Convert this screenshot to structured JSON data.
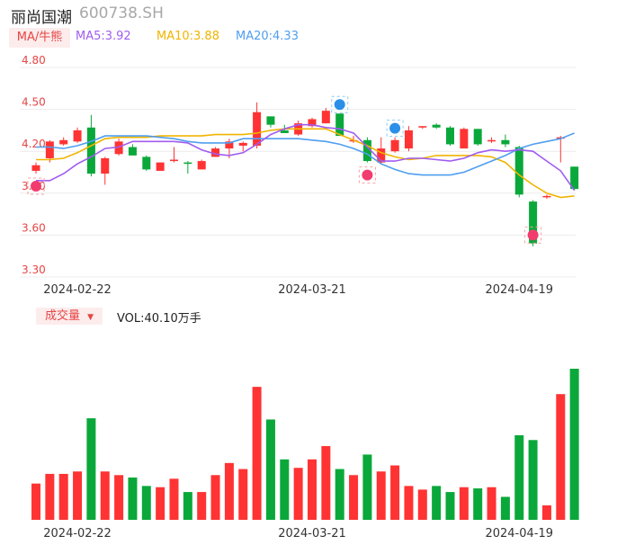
{
  "header": {
    "stock_name": "丽尚国潮",
    "stock_code": "600738.SH"
  },
  "ma_panel": {
    "toggle_label": "MA/牛熊",
    "ma5": {
      "label": "MA5:3.92",
      "color": "#a05cf0"
    },
    "ma10": {
      "label": "MA10:3.88",
      "color": "#f0b400"
    },
    "ma20": {
      "label": "MA20:4.33",
      "color": "#4f9ef0"
    }
  },
  "volume_panel": {
    "toggle_label": "成交量",
    "value_label": "VOL:40.10万手"
  },
  "colors": {
    "up": "#ff3333",
    "down": "#0aa83a",
    "grid": "#ececec",
    "axis_text": "#e64545"
  },
  "chart_data": {
    "type": "candlestick",
    "price_axis": {
      "ylim": [
        3.3,
        4.8
      ],
      "ticks": [
        "4.80",
        "4.50",
        "4.20",
        "3.90",
        "3.60",
        "3.30"
      ]
    },
    "x_tick_labels": [
      {
        "index": 3,
        "label": "2024-02-22"
      },
      {
        "index": 20,
        "label": "2024-03-21"
      },
      {
        "index": 35,
        "label": "2024-04-19"
      }
    ],
    "candles": [
      {
        "o": 4.06,
        "h": 4.12,
        "l": 4.04,
        "c": 4.1,
        "v": 30
      },
      {
        "o": 4.15,
        "h": 4.28,
        "l": 4.12,
        "c": 4.27,
        "v": 38
      },
      {
        "o": 4.25,
        "h": 4.3,
        "l": 4.24,
        "c": 4.28,
        "v": 38
      },
      {
        "o": 4.27,
        "h": 4.37,
        "l": 4.26,
        "c": 4.35,
        "v": 40
      },
      {
        "o": 4.37,
        "h": 4.46,
        "l": 4.02,
        "c": 4.04,
        "v": 84
      },
      {
        "o": 4.04,
        "h": 4.16,
        "l": 3.96,
        "c": 4.15,
        "v": 40
      },
      {
        "o": 4.18,
        "h": 4.29,
        "l": 4.17,
        "c": 4.27,
        "v": 37
      },
      {
        "o": 4.23,
        "h": 4.25,
        "l": 4.17,
        "c": 4.17,
        "v": 35
      },
      {
        "o": 4.16,
        "h": 4.17,
        "l": 4.06,
        "c": 4.07,
        "v": 28
      },
      {
        "o": 4.06,
        "h": 4.12,
        "l": 4.06,
        "c": 4.12,
        "v": 27
      },
      {
        "o": 4.13,
        "h": 4.23,
        "l": 4.12,
        "c": 4.14,
        "v": 34
      },
      {
        "o": 4.12,
        "h": 4.13,
        "l": 4.04,
        "c": 4.11,
        "v": 23
      },
      {
        "o": 4.07,
        "h": 4.14,
        "l": 4.07,
        "c": 4.13,
        "v": 23
      },
      {
        "o": 4.16,
        "h": 4.23,
        "l": 4.16,
        "c": 4.22,
        "v": 37
      },
      {
        "o": 4.22,
        "h": 4.29,
        "l": 4.15,
        "c": 4.27,
        "v": 47
      },
      {
        "o": 4.24,
        "h": 4.27,
        "l": 4.2,
        "c": 4.26,
        "v": 42
      },
      {
        "o": 4.24,
        "h": 4.55,
        "l": 4.22,
        "c": 4.48,
        "v": 110
      },
      {
        "o": 4.45,
        "h": 4.45,
        "l": 4.37,
        "c": 4.39,
        "v": 83
      },
      {
        "o": 4.35,
        "h": 4.39,
        "l": 4.33,
        "c": 4.33,
        "v": 50
      },
      {
        "o": 4.32,
        "h": 4.42,
        "l": 4.31,
        "c": 4.4,
        "v": 43
      },
      {
        "o": 4.38,
        "h": 4.44,
        "l": 4.37,
        "c": 4.43,
        "v": 50
      },
      {
        "o": 4.4,
        "h": 4.51,
        "l": 4.4,
        "c": 4.49,
        "v": 61
      },
      {
        "o": 4.47,
        "h": 4.47,
        "l": 4.32,
        "c": 4.31,
        "v": 42
      },
      {
        "o": 4.28,
        "h": 4.31,
        "l": 4.26,
        "c": 4.28,
        "v": 37
      },
      {
        "o": 4.28,
        "h": 4.3,
        "l": 4.12,
        "c": 4.13,
        "v": 54
      },
      {
        "o": 4.12,
        "h": 4.3,
        "l": 4.11,
        "c": 4.22,
        "v": 40
      },
      {
        "o": 4.2,
        "h": 4.3,
        "l": 4.19,
        "c": 4.28,
        "v": 45
      },
      {
        "o": 4.22,
        "h": 4.38,
        "l": 4.2,
        "c": 4.35,
        "v": 28
      },
      {
        "o": 4.37,
        "h": 4.38,
        "l": 4.36,
        "c": 4.38,
        "v": 25
      },
      {
        "o": 4.39,
        "h": 4.4,
        "l": 4.36,
        "c": 4.37,
        "v": 28
      },
      {
        "o": 4.37,
        "h": 4.38,
        "l": 4.24,
        "c": 4.25,
        "v": 23
      },
      {
        "o": 4.22,
        "h": 4.37,
        "l": 4.22,
        "c": 4.36,
        "v": 27
      },
      {
        "o": 4.36,
        "h": 4.36,
        "l": 4.24,
        "c": 4.25,
        "v": 26
      },
      {
        "o": 4.28,
        "h": 4.3,
        "l": 4.26,
        "c": 4.28,
        "v": 27
      },
      {
        "o": 4.28,
        "h": 4.32,
        "l": 4.23,
        "c": 4.25,
        "v": 19
      },
      {
        "o": 4.23,
        "h": 4.24,
        "l": 3.87,
        "c": 3.89,
        "v": 70
      },
      {
        "o": 3.84,
        "h": 3.85,
        "l": 3.52,
        "c": 3.54,
        "v": 66
      },
      {
        "o": 3.88,
        "h": 3.89,
        "l": 3.86,
        "c": 3.88,
        "v": 12
      },
      {
        "o": 4.29,
        "h": 4.31,
        "l": 4.12,
        "c": 4.3,
        "v": 104
      },
      {
        "o": 4.09,
        "h": 4.09,
        "l": 3.92,
        "c": 3.93,
        "v": 125
      }
    ],
    "ma5": [
      3.99,
      3.99,
      4.04,
      4.11,
      4.16,
      4.22,
      4.23,
      4.27,
      4.27,
      4.27,
      4.27,
      4.26,
      4.21,
      4.18,
      4.17,
      4.19,
      4.25,
      4.32,
      4.36,
      4.39,
      4.39,
      4.37,
      4.36,
      4.33,
      4.23,
      4.13,
      4.13,
      4.15,
      4.15,
      4.14,
      4.13,
      4.15,
      4.19,
      4.21,
      4.2,
      4.21,
      4.2,
      4.13,
      4.06,
      3.92
    ],
    "ma10": [
      4.14,
      4.14,
      4.15,
      4.19,
      4.24,
      4.29,
      4.3,
      4.3,
      4.3,
      4.31,
      4.31,
      4.31,
      4.31,
      4.32,
      4.32,
      4.32,
      4.33,
      4.35,
      4.36,
      4.36,
      4.36,
      4.36,
      4.32,
      4.28,
      4.24,
      4.19,
      4.16,
      4.14,
      4.15,
      4.17,
      4.17,
      4.17,
      4.17,
      4.16,
      4.12,
      4.03,
      3.96,
      3.9,
      3.87,
      3.88
    ],
    "ma20": [
      4.23,
      4.23,
      4.22,
      4.24,
      4.27,
      4.31,
      4.31,
      4.31,
      4.31,
      4.3,
      4.29,
      4.27,
      4.26,
      4.26,
      4.26,
      4.29,
      4.29,
      4.29,
      4.29,
      4.29,
      4.28,
      4.27,
      4.25,
      4.22,
      4.18,
      4.11,
      4.07,
      4.04,
      4.03,
      4.03,
      4.03,
      4.05,
      4.09,
      4.13,
      4.17,
      4.22,
      4.25,
      4.27,
      4.29,
      4.33
    ],
    "markers": [
      {
        "index": 0,
        "type": "bull-badge",
        "anchor": "below-low"
      },
      {
        "index": 24,
        "type": "bull-badge",
        "anchor": "below-low"
      },
      {
        "index": 36,
        "type": "bull-badge",
        "anchor": "mid"
      },
      {
        "index": 22,
        "type": "spark-badge",
        "anchor": "above-high"
      },
      {
        "index": 26,
        "type": "spark-badge",
        "anchor": "above-high"
      }
    ]
  }
}
